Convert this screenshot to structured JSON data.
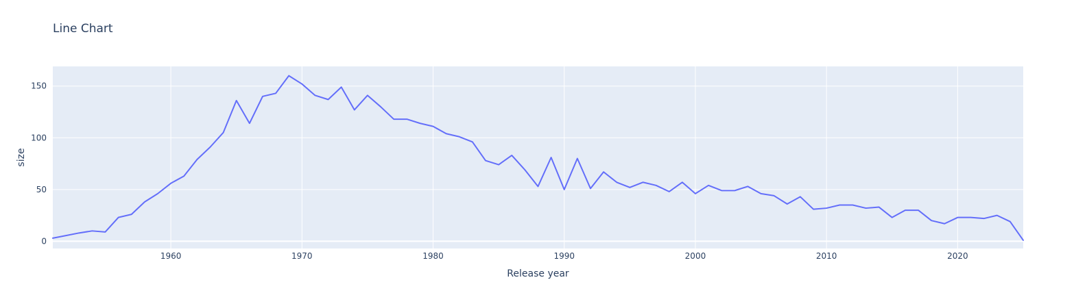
{
  "chart_data": {
    "type": "line",
    "title": "Line Chart",
    "xlabel": "Release year",
    "ylabel": "size",
    "xlim": [
      1951,
      2025
    ],
    "ylim": [
      -7,
      169
    ],
    "grid": true,
    "plot_background": "#e5ecf6",
    "line_color": "#636efa",
    "x_ticks": [
      1960,
      1970,
      1980,
      1990,
      2000,
      2010,
      2020
    ],
    "y_ticks": [
      0,
      50,
      100,
      150
    ],
    "series": [
      {
        "x": [
          1951,
          1952,
          1953,
          1954,
          1955,
          1956,
          1957,
          1958,
          1959,
          1960,
          1961,
          1962,
          1963,
          1964,
          1965,
          1966,
          1967,
          1968,
          1969,
          1970,
          1971,
          1972,
          1973,
          1974,
          1975,
          1976,
          1977,
          1978,
          1979,
          1980,
          1981,
          1982,
          1983,
          1984,
          1985,
          1986,
          1987,
          1988,
          1989,
          1990,
          1991,
          1992,
          1993,
          1994,
          1995,
          1996,
          1997,
          1998,
          1999,
          2000,
          2001,
          2002,
          2003,
          2004,
          2005,
          2006,
          2007,
          2008,
          2009,
          2010,
          2011,
          2012,
          2013,
          2014,
          2015,
          2016,
          2017,
          2018,
          2019,
          2020,
          2021,
          2022,
          2023,
          2024,
          2025
        ],
        "values": [
          3,
          5.5,
          8,
          10,
          9,
          23,
          26,
          38,
          46,
          56,
          63,
          79,
          91,
          105,
          136,
          114,
          140,
          143,
          160,
          152,
          141,
          137,
          149,
          127,
          141,
          130,
          118,
          118,
          114,
          111,
          104,
          101,
          96,
          78,
          74,
          83,
          69,
          53,
          81,
          50,
          80,
          51,
          67,
          57,
          52,
          57,
          54,
          48,
          57,
          46,
          54,
          49,
          49,
          53,
          46,
          44,
          36,
          43,
          31,
          32,
          35,
          35,
          32,
          33,
          23,
          30,
          30,
          20,
          17,
          23,
          23,
          22,
          25,
          19,
          1
        ]
      }
    ]
  }
}
